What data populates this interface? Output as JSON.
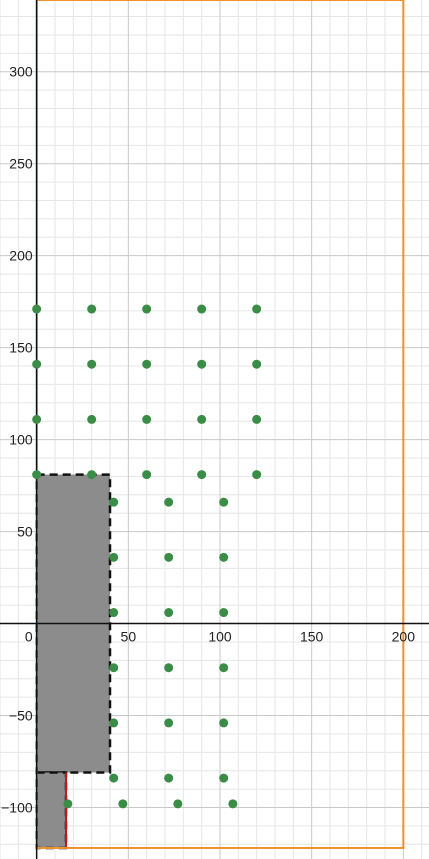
{
  "chart_data": {
    "type": "scatter",
    "title": "",
    "xlabel": "",
    "ylabel": "",
    "xlim": [
      -20,
      214
    ],
    "ylim": [
      -128,
      339
    ],
    "grid": true,
    "x_ticks": [
      {
        "value": 0,
        "label": "0"
      },
      {
        "value": 50,
        "label": "50"
      },
      {
        "value": 100,
        "label": "100"
      },
      {
        "value": 150,
        "label": "150"
      },
      {
        "value": 200,
        "label": "200"
      }
    ],
    "y_ticks": [
      {
        "value": 300,
        "label": "300"
      },
      {
        "value": 250,
        "label": "250"
      },
      {
        "value": 200,
        "label": "200"
      },
      {
        "value": 150,
        "label": "150"
      },
      {
        "value": 100,
        "label": "100"
      },
      {
        "value": 50,
        "label": "50"
      },
      {
        "value": -50,
        "label": "−50"
      },
      {
        "value": -100,
        "label": "−100"
      }
    ],
    "colors": {
      "points": "#3a8d46",
      "boundary": "#f0902a",
      "fill": "#8c8c8c",
      "dashed": "#111111",
      "red_segment": "#c01818",
      "grid_major": "#c8c8c8",
      "grid_minor": "#e6e6e6",
      "axis": "#111111"
    },
    "boundary_rect": {
      "x1": 0,
      "x2": 200,
      "y1": -122,
      "y2": 339
    },
    "shaded_regions": [
      {
        "x1": 0,
        "x2": 40,
        "y1": -81,
        "y2": 81
      },
      {
        "x1": 0,
        "x2": 16,
        "y1": -122,
        "y2": -81
      }
    ],
    "red_segment": {
      "x": 16,
      "y1": -122,
      "y2": -81
    },
    "series": [
      {
        "points": [
          [
            0,
            171
          ],
          [
            30,
            171
          ],
          [
            60,
            171
          ],
          [
            90,
            171
          ],
          [
            120,
            171
          ],
          [
            0,
            141
          ],
          [
            30,
            141
          ],
          [
            60,
            141
          ],
          [
            90,
            141
          ],
          [
            120,
            141
          ],
          [
            0,
            111
          ],
          [
            30,
            111
          ],
          [
            60,
            111
          ],
          [
            90,
            111
          ],
          [
            120,
            111
          ],
          [
            0,
            81
          ],
          [
            30,
            81
          ],
          [
            60,
            81
          ],
          [
            90,
            81
          ],
          [
            120,
            81
          ],
          [
            42,
            66
          ],
          [
            72,
            66
          ],
          [
            102,
            66
          ],
          [
            42,
            36
          ],
          [
            72,
            36
          ],
          [
            102,
            36
          ],
          [
            42,
            6
          ],
          [
            72,
            6
          ],
          [
            102,
            6
          ],
          [
            42,
            -24
          ],
          [
            72,
            -24
          ],
          [
            102,
            -24
          ],
          [
            42,
            -54
          ],
          [
            72,
            -54
          ],
          [
            102,
            -54
          ],
          [
            42,
            -84
          ],
          [
            72,
            -84
          ],
          [
            102,
            -84
          ],
          [
            17,
            -98
          ],
          [
            47,
            -98
          ],
          [
            77,
            -98
          ],
          [
            107,
            -98
          ]
        ]
      }
    ]
  }
}
